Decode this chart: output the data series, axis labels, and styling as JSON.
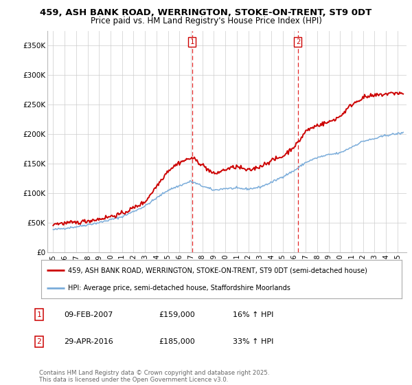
{
  "title_line1": "459, ASH BANK ROAD, WERRINGTON, STOKE-ON-TRENT, ST9 0DT",
  "title_line2": "Price paid vs. HM Land Registry's House Price Index (HPI)",
  "ytick_values": [
    0,
    50000,
    100000,
    150000,
    200000,
    250000,
    300000,
    350000
  ],
  "ytick_labels": [
    "£0",
    "£50K",
    "£100K",
    "£150K",
    "£200K",
    "£250K",
    "£300K",
    "£350K"
  ],
  "ylim": [
    0,
    375000
  ],
  "xlim_start": 1994.5,
  "xlim_end": 2025.8,
  "red_color": "#cc0000",
  "blue_color": "#7aacda",
  "vline_color": "#dd0000",
  "grid_color": "#cccccc",
  "bg_color": "#ffffff",
  "marker1_x": 2007.1,
  "marker2_x": 2016.33,
  "sale1_date": "09-FEB-2007",
  "sale1_price": "£159,000",
  "sale1_hpi": "16% ↑ HPI",
  "sale2_date": "29-APR-2016",
  "sale2_price": "£185,000",
  "sale2_hpi": "33% ↑ HPI",
  "legend_line1": "459, ASH BANK ROAD, WERRINGTON, STOKE-ON-TRENT, ST9 0DT (semi-detached house)",
  "legend_line2": "HPI: Average price, semi-detached house, Staffordshire Moorlands",
  "footer": "Contains HM Land Registry data © Crown copyright and database right 2025.\nThis data is licensed under the Open Government Licence v3.0.",
  "xtick_years": [
    1995,
    1996,
    1997,
    1998,
    1999,
    2000,
    2001,
    2002,
    2003,
    2004,
    2005,
    2006,
    2007,
    2008,
    2009,
    2010,
    2011,
    2012,
    2013,
    2014,
    2015,
    2016,
    2017,
    2018,
    2019,
    2020,
    2021,
    2022,
    2023,
    2024,
    2025
  ]
}
